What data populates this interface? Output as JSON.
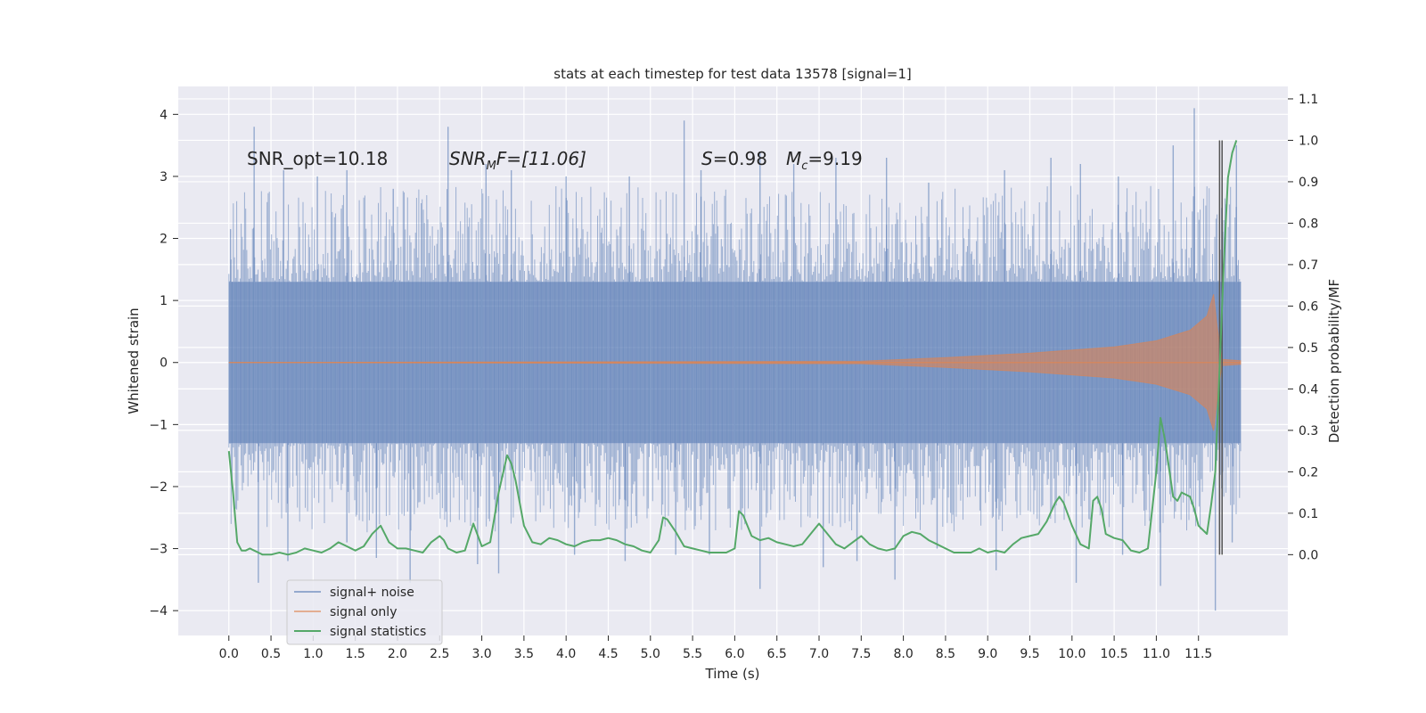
{
  "chart_data": {
    "type": "line",
    "title": "stats at each timestep for test data 13578 [signal=1]",
    "xlabel": "Time (s)",
    "ylabel_left": "Whitened strain",
    "ylabel_right": "Detection probability/MF",
    "xlim": [
      -0.6,
      12.56
    ],
    "ylim_left": [
      -4.4,
      4.45
    ],
    "ylim_right": [
      -0.195,
      1.13
    ],
    "xticks": [
      "0.0",
      "0.5",
      "1.0",
      "1.5",
      "2.0",
      "2.5",
      "3.0",
      "3.5",
      "4.0",
      "4.5",
      "5.0",
      "5.5",
      "6.0",
      "6.5",
      "7.0",
      "7.5",
      "8.0",
      "8.5",
      "9.0",
      "9.5",
      "10.0",
      "10.5",
      "11.0",
      "11.5"
    ],
    "yticks_left": [
      "4",
      "3",
      "2",
      "1",
      "0",
      "−1",
      "−2",
      "−3",
      "−4"
    ],
    "yticks_right": [
      "1.1",
      "1.0",
      "0.9",
      "0.8",
      "0.7",
      "0.6",
      "0.5",
      "0.4",
      "0.3",
      "0.2",
      "0.1",
      "0.0"
    ],
    "grid": true,
    "annotations": {
      "snr_opt": "SNR_opt=10.18",
      "snr_mf_main": "SNR",
      "snr_mf_sub": "M",
      "snr_mf_rest": "F=[11.06]",
      "s_label": "S",
      "s_value": "=0.98",
      "mc_main": "M",
      "mc_sub": "c",
      "mc_value": "=9.19"
    },
    "legend": {
      "placement": "lower-left",
      "entries": [
        "signal+ noise",
        "signal only",
        "signal statistics"
      ]
    },
    "colors": {
      "noise": "#4c72b0",
      "signal": "#dd8452",
      "stats": "#55a868",
      "background": "#eaeaf2",
      "grid": "#ffffff",
      "vline": "#555555"
    },
    "series": [
      {
        "name": "signal+ noise",
        "axis": "left",
        "x_range": [
          0.0,
          12.0
        ],
        "spike_upper": [
          [
            0.02,
            2.15
          ],
          [
            0.3,
            3.8
          ],
          [
            0.65,
            3.1
          ],
          [
            1.05,
            3.0
          ],
          [
            1.4,
            3.1
          ],
          [
            1.95,
            2.8
          ],
          [
            2.6,
            3.8
          ],
          [
            3.05,
            3.2
          ],
          [
            3.35,
            3.1
          ],
          [
            4.0,
            3.0
          ],
          [
            4.75,
            3.0
          ],
          [
            5.4,
            3.9
          ],
          [
            5.6,
            3.1
          ],
          [
            6.3,
            3.4
          ],
          [
            6.7,
            3.2
          ],
          [
            7.2,
            3.3
          ],
          [
            7.8,
            3.3
          ],
          [
            8.3,
            2.9
          ],
          [
            9.2,
            3.1
          ],
          [
            9.75,
            3.3
          ],
          [
            10.1,
            3.2
          ],
          [
            10.55,
            3.0
          ],
          [
            11.2,
            3.5
          ],
          [
            11.45,
            4.1
          ],
          [
            11.95,
            3.5
          ]
        ],
        "spike_lower": [
          [
            0.35,
            -3.55
          ],
          [
            0.7,
            -3.2
          ],
          [
            1.4,
            -2.9
          ],
          [
            1.75,
            -3.15
          ],
          [
            2.15,
            -3.55
          ],
          [
            2.95,
            -3.25
          ],
          [
            3.2,
            -3.4
          ],
          [
            4.1,
            -3.1
          ],
          [
            4.7,
            -3.2
          ],
          [
            5.3,
            -3.1
          ],
          [
            5.7,
            -3.1
          ],
          [
            6.3,
            -3.65
          ],
          [
            7.05,
            -3.3
          ],
          [
            7.45,
            -3.2
          ],
          [
            7.9,
            -3.5
          ],
          [
            8.4,
            -3.0
          ],
          [
            9.1,
            -3.35
          ],
          [
            10.05,
            -3.55
          ],
          [
            10.6,
            -3.1
          ],
          [
            11.05,
            -3.6
          ],
          [
            11.7,
            -4.0
          ],
          [
            11.9,
            -2.9
          ]
        ]
      },
      {
        "name": "signal only",
        "axis": "left",
        "envelope_x": [
          0.0,
          7.5,
          8.5,
          9.5,
          10.5,
          11.0,
          11.4,
          11.6,
          11.68,
          11.72,
          11.75,
          11.78,
          12.0
        ],
        "envelope_y": [
          0.0,
          0.02,
          0.08,
          0.15,
          0.25,
          0.35,
          0.52,
          0.75,
          1.1,
          0.6,
          0.3,
          0.05,
          0.03
        ]
      },
      {
        "name": "signal statistics",
        "axis": "right",
        "x": [
          0.0,
          0.05,
          0.1,
          0.15,
          0.2,
          0.25,
          0.3,
          0.35,
          0.4,
          0.5,
          0.6,
          0.7,
          0.8,
          0.9,
          1.0,
          1.1,
          1.2,
          1.3,
          1.4,
          1.5,
          1.6,
          1.7,
          1.75,
          1.8,
          1.9,
          2.0,
          2.1,
          2.2,
          2.3,
          2.4,
          2.5,
          2.55,
          2.6,
          2.7,
          2.8,
          2.9,
          3.0,
          3.1,
          3.2,
          3.3,
          3.35,
          3.4,
          3.5,
          3.6,
          3.7,
          3.8,
          3.9,
          4.0,
          4.1,
          4.2,
          4.3,
          4.4,
          4.5,
          4.6,
          4.7,
          4.8,
          4.9,
          5.0,
          5.1,
          5.15,
          5.2,
          5.3,
          5.4,
          5.5,
          5.6,
          5.7,
          5.8,
          5.9,
          6.0,
          6.05,
          6.1,
          6.2,
          6.3,
          6.4,
          6.5,
          6.6,
          6.7,
          6.8,
          6.9,
          7.0,
          7.1,
          7.2,
          7.3,
          7.4,
          7.5,
          7.6,
          7.7,
          7.8,
          7.9,
          8.0,
          8.1,
          8.2,
          8.3,
          8.4,
          8.5,
          8.6,
          8.7,
          8.8,
          8.9,
          9.0,
          9.1,
          9.2,
          9.3,
          9.4,
          9.5,
          9.6,
          9.7,
          9.8,
          9.85,
          9.9,
          10.0,
          10.1,
          10.2,
          10.25,
          10.3,
          10.35,
          10.4,
          10.5,
          10.6,
          10.7,
          10.8,
          10.9,
          11.0,
          11.05,
          11.1,
          11.2,
          11.25,
          11.3,
          11.4,
          11.45,
          11.5,
          11.6,
          11.65,
          11.7,
          11.75,
          11.8,
          11.85,
          11.9,
          11.95
        ],
        "y": [
          0.25,
          0.15,
          0.03,
          0.01,
          0.01,
          0.015,
          0.01,
          0.005,
          0.0,
          0.0,
          0.005,
          0.0,
          0.005,
          0.015,
          0.01,
          0.005,
          0.015,
          0.03,
          0.02,
          0.01,
          0.02,
          0.05,
          0.06,
          0.07,
          0.03,
          0.015,
          0.015,
          0.01,
          0.005,
          0.03,
          0.045,
          0.035,
          0.015,
          0.005,
          0.01,
          0.075,
          0.02,
          0.03,
          0.15,
          0.24,
          0.22,
          0.18,
          0.07,
          0.03,
          0.025,
          0.04,
          0.035,
          0.025,
          0.02,
          0.03,
          0.035,
          0.035,
          0.04,
          0.035,
          0.025,
          0.02,
          0.01,
          0.005,
          0.035,
          0.09,
          0.085,
          0.055,
          0.02,
          0.015,
          0.01,
          0.005,
          0.005,
          0.005,
          0.015,
          0.105,
          0.095,
          0.045,
          0.035,
          0.04,
          0.03,
          0.025,
          0.02,
          0.025,
          0.05,
          0.075,
          0.05,
          0.025,
          0.015,
          0.03,
          0.045,
          0.025,
          0.015,
          0.01,
          0.015,
          0.045,
          0.055,
          0.05,
          0.035,
          0.025,
          0.015,
          0.005,
          0.005,
          0.005,
          0.015,
          0.005,
          0.01,
          0.005,
          0.025,
          0.04,
          0.045,
          0.05,
          0.08,
          0.125,
          0.14,
          0.125,
          0.07,
          0.025,
          0.015,
          0.13,
          0.14,
          0.11,
          0.05,
          0.04,
          0.035,
          0.01,
          0.005,
          0.015,
          0.2,
          0.33,
          0.28,
          0.14,
          0.13,
          0.15,
          0.14,
          0.11,
          0.07,
          0.05,
          0.12,
          0.2,
          0.45,
          0.7,
          0.91,
          0.97,
          1.0
        ]
      }
    ],
    "vlines": [
      11.75,
      11.78
    ]
  }
}
